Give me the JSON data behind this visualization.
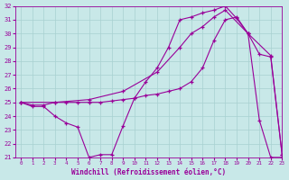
{
  "xlabel": "Windchill (Refroidissement éolien,°C)",
  "xlim": [
    -0.5,
    23
  ],
  "ylim": [
    21,
    32
  ],
  "yticks": [
    21,
    22,
    23,
    24,
    25,
    26,
    27,
    28,
    29,
    30,
    31,
    32
  ],
  "xticks": [
    0,
    1,
    2,
    3,
    4,
    5,
    6,
    7,
    8,
    9,
    10,
    11,
    12,
    13,
    14,
    15,
    16,
    17,
    18,
    19,
    20,
    21,
    22,
    23
  ],
  "bg_color": "#c8e8e8",
  "line_color": "#990099",
  "grid_color": "#a8d0d0",
  "lines": [
    {
      "x": [
        0,
        1,
        2,
        3,
        4,
        5,
        6,
        7,
        8,
        9,
        10,
        11,
        12,
        13,
        14,
        15,
        16,
        17,
        18,
        19,
        20,
        21,
        22,
        23
      ],
      "y": [
        25,
        24.7,
        24.7,
        24.0,
        23.5,
        23.2,
        21.0,
        21.2,
        21.2,
        23.3,
        25.3,
        26.5,
        27.5,
        29.0,
        31.0,
        31.2,
        31.5,
        31.7,
        32.0,
        31.1,
        30.0,
        23.7,
        21.0,
        21.0
      ]
    },
    {
      "x": [
        0,
        1,
        2,
        3,
        4,
        5,
        6,
        7,
        8,
        9,
        10,
        11,
        12,
        13,
        14,
        15,
        16,
        17,
        18,
        19,
        20,
        21,
        22,
        23
      ],
      "y": [
        25,
        24.8,
        24.8,
        25.0,
        25.0,
        25.0,
        25.0,
        25.0,
        25.1,
        25.2,
        25.3,
        25.5,
        25.6,
        25.8,
        26.0,
        26.5,
        27.5,
        29.5,
        31.0,
        31.2,
        30.0,
        28.5,
        28.3,
        21.2
      ]
    },
    {
      "x": [
        0,
        3,
        6,
        9,
        12,
        14,
        15,
        16,
        17,
        18,
        20,
        22,
        23
      ],
      "y": [
        25,
        25.0,
        25.2,
        25.8,
        27.2,
        29.0,
        30.0,
        30.5,
        31.2,
        31.7,
        30.0,
        28.4,
        21.2
      ]
    }
  ]
}
